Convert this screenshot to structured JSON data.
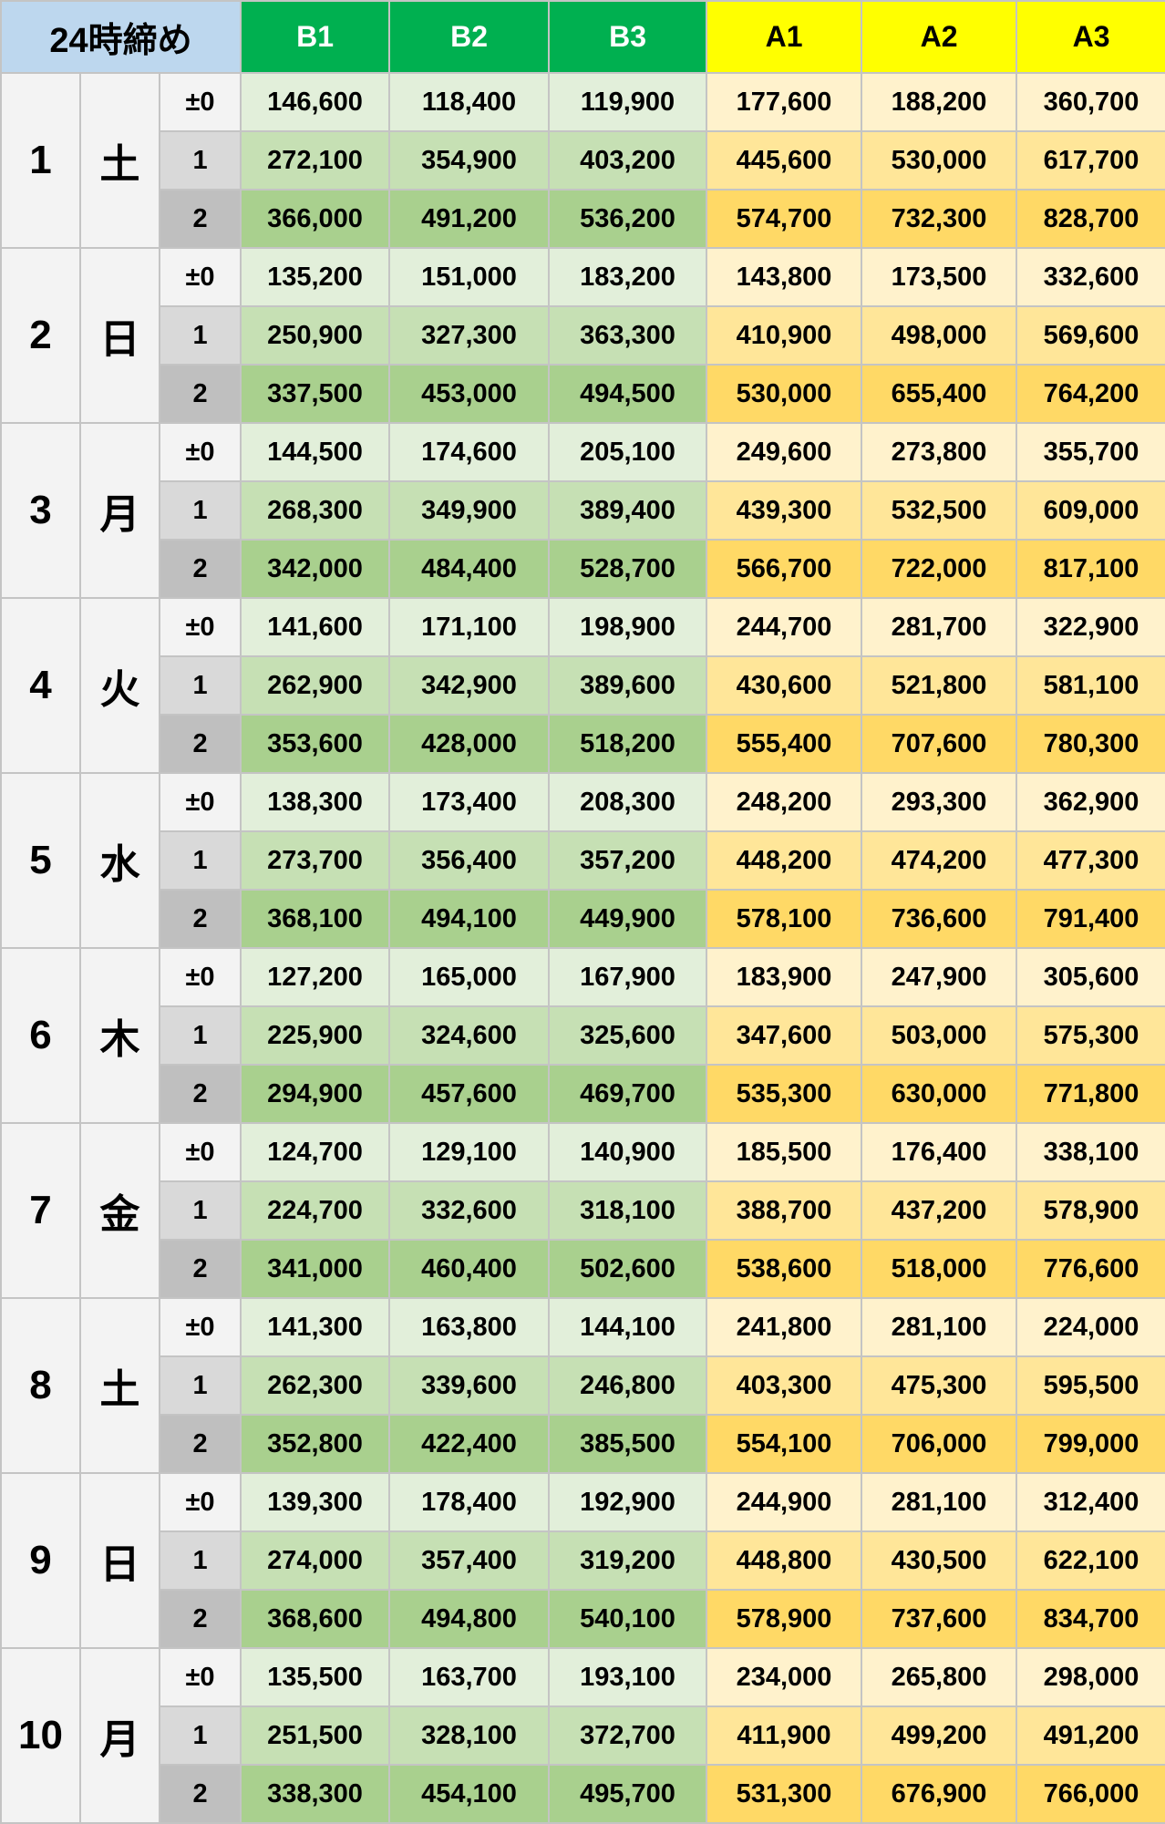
{
  "header": {
    "corner": "24時締め",
    "columns": [
      "B1",
      "B2",
      "B3",
      "A1",
      "A2",
      "A3"
    ]
  },
  "colors": {
    "b_header": "#00b050",
    "a_header": "#ffff00",
    "corner": "#bdd7ee"
  },
  "levels": [
    "±0",
    "1",
    "2"
  ],
  "days": [
    {
      "day": "1",
      "weekday": "土",
      "rows": [
        [
          "146,600",
          "118,400",
          "119,900",
          "177,600",
          "188,200",
          "360,700"
        ],
        [
          "272,100",
          "354,900",
          "403,200",
          "445,600",
          "530,000",
          "617,700"
        ],
        [
          "366,000",
          "491,200",
          "536,200",
          "574,700",
          "732,300",
          "828,700"
        ]
      ]
    },
    {
      "day": "2",
      "weekday": "日",
      "rows": [
        [
          "135,200",
          "151,000",
          "183,200",
          "143,800",
          "173,500",
          "332,600"
        ],
        [
          "250,900",
          "327,300",
          "363,300",
          "410,900",
          "498,000",
          "569,600"
        ],
        [
          "337,500",
          "453,000",
          "494,500",
          "530,000",
          "655,400",
          "764,200"
        ]
      ]
    },
    {
      "day": "3",
      "weekday": "月",
      "rows": [
        [
          "144,500",
          "174,600",
          "205,100",
          "249,600",
          "273,800",
          "355,700"
        ],
        [
          "268,300",
          "349,900",
          "389,400",
          "439,300",
          "532,500",
          "609,000"
        ],
        [
          "342,000",
          "484,400",
          "528,700",
          "566,700",
          "722,000",
          "817,100"
        ]
      ]
    },
    {
      "day": "4",
      "weekday": "火",
      "rows": [
        [
          "141,600",
          "171,100",
          "198,900",
          "244,700",
          "281,700",
          "322,900"
        ],
        [
          "262,900",
          "342,900",
          "389,600",
          "430,600",
          "521,800",
          "581,100"
        ],
        [
          "353,600",
          "428,000",
          "518,200",
          "555,400",
          "707,600",
          "780,300"
        ]
      ]
    },
    {
      "day": "5",
      "weekday": "水",
      "rows": [
        [
          "138,300",
          "173,400",
          "208,300",
          "248,200",
          "293,300",
          "362,900"
        ],
        [
          "273,700",
          "356,400",
          "357,200",
          "448,200",
          "474,200",
          "477,300"
        ],
        [
          "368,100",
          "494,100",
          "449,900",
          "578,100",
          "736,600",
          "791,400"
        ]
      ]
    },
    {
      "day": "6",
      "weekday": "木",
      "rows": [
        [
          "127,200",
          "165,000",
          "167,900",
          "183,900",
          "247,900",
          "305,600"
        ],
        [
          "225,900",
          "324,600",
          "325,600",
          "347,600",
          "503,000",
          "575,300"
        ],
        [
          "294,900",
          "457,600",
          "469,700",
          "535,300",
          "630,000",
          "771,800"
        ]
      ]
    },
    {
      "day": "7",
      "weekday": "金",
      "rows": [
        [
          "124,700",
          "129,100",
          "140,900",
          "185,500",
          "176,400",
          "338,100"
        ],
        [
          "224,700",
          "332,600",
          "318,100",
          "388,700",
          "437,200",
          "578,900"
        ],
        [
          "341,000",
          "460,400",
          "502,600",
          "538,600",
          "518,000",
          "776,600"
        ]
      ]
    },
    {
      "day": "8",
      "weekday": "土",
      "rows": [
        [
          "141,300",
          "163,800",
          "144,100",
          "241,800",
          "281,100",
          "224,000"
        ],
        [
          "262,300",
          "339,600",
          "246,800",
          "403,300",
          "475,300",
          "595,500"
        ],
        [
          "352,800",
          "422,400",
          "385,500",
          "554,100",
          "706,000",
          "799,000"
        ]
      ]
    },
    {
      "day": "9",
      "weekday": "日",
      "rows": [
        [
          "139,300",
          "178,400",
          "192,900",
          "244,900",
          "281,100",
          "312,400"
        ],
        [
          "274,000",
          "357,400",
          "319,200",
          "448,800",
          "430,500",
          "622,100"
        ],
        [
          "368,600",
          "494,800",
          "540,100",
          "578,900",
          "737,600",
          "834,700"
        ]
      ]
    },
    {
      "day": "10",
      "weekday": "月",
      "rows": [
        [
          "135,500",
          "163,700",
          "193,100",
          "234,000",
          "265,800",
          "298,000"
        ],
        [
          "251,500",
          "328,100",
          "372,700",
          "411,900",
          "499,200",
          "491,200"
        ],
        [
          "338,300",
          "454,100",
          "495,700",
          "531,300",
          "676,900",
          "766,000"
        ]
      ]
    }
  ]
}
